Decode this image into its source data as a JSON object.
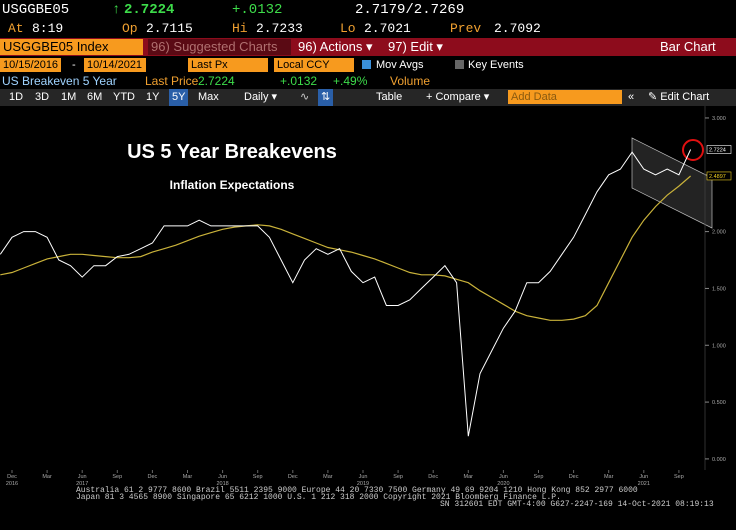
{
  "header": {
    "ticker": "USGGBE05",
    "last": "2.7224",
    "change": "+.0132",
    "bid_ask": "2.7179/2.7269"
  },
  "quote": {
    "at_label": "At",
    "at": "8:19",
    "open_label": "Op",
    "open": "2.7115",
    "high_label": "Hi",
    "high": "2.7233",
    "low_label": "Lo",
    "low": "2.7021",
    "prev_label": "Prev",
    "prev": "2.7092"
  },
  "command": {
    "security": "USGGBE05 Index",
    "suggested": "96) Suggested Charts",
    "actions": "96) Actions",
    "edit": "97) Edit",
    "function": "Bar Chart"
  },
  "settings": {
    "start": "10/15/2016",
    "dash": "-",
    "end": "10/14/2021",
    "field": "Last Px",
    "currency": "Local CCY",
    "mov_avgs": "Mov Avgs",
    "key_events": "Key Events"
  },
  "legend": {
    "name": "US Breakeven 5 Year",
    "last_label": "Last Price",
    "last": "2.7224",
    "change": "+.0132",
    "pct": "+.49%",
    "volume": "Volume"
  },
  "toolbar": {
    "periods": [
      "1D",
      "3D",
      "1M",
      "6M",
      "YTD",
      "1Y",
      "5Y",
      "Max"
    ],
    "active": "5Y",
    "frequency": "Daily",
    "table": "Table",
    "compare": "+ Compare",
    "add_data": "Add Data",
    "edit_chart": "Edit Chart"
  },
  "chart_data": {
    "type": "line",
    "title": "US 5 Year Breakevens",
    "subtitle": "Inflation Expectations",
    "categories": [
      null,
      "Dec",
      null,
      null,
      "Mar",
      null,
      null,
      "Jun",
      null,
      null,
      "Sep",
      null,
      null,
      "Dec",
      null,
      null,
      "Mar",
      null,
      null,
      "Jun",
      null,
      null,
      "Sep",
      null,
      null,
      "Dec",
      null,
      null,
      "Mar",
      null,
      null,
      "Jun",
      null,
      null,
      "Sep",
      null,
      null,
      "Dec",
      null,
      null,
      "Mar",
      null,
      null,
      "Jun",
      null,
      null,
      "Sep",
      null,
      null,
      "Dec",
      null,
      null,
      "Mar",
      null,
      null,
      "Jun",
      null,
      null,
      "Sep",
      null
    ],
    "year_labels": [
      null,
      "2016",
      null,
      null,
      null,
      null,
      null,
      "2017",
      null,
      null,
      null,
      null,
      null,
      null,
      null,
      null,
      null,
      null,
      null,
      "2018",
      null,
      null,
      null,
      null,
      null,
      null,
      null,
      null,
      null,
      null,
      null,
      "2019",
      null,
      null,
      null,
      null,
      null,
      null,
      null,
      null,
      null,
      null,
      null,
      "2020",
      null,
      null,
      null,
      null,
      null,
      null,
      null,
      null,
      null,
      null,
      null,
      "2021",
      null,
      null,
      null,
      null
    ],
    "series": [
      {
        "name": "Last Price",
        "color": "#ffffff",
        "last_value_label": "2.7224",
        "label_color": "#ffffff",
        "values": [
          1.8,
          1.95,
          2.0,
          2.0,
          1.95,
          1.75,
          1.7,
          1.6,
          1.7,
          1.7,
          1.78,
          1.8,
          1.85,
          1.9,
          2.05,
          2.05,
          2.05,
          2.1,
          2.05,
          2.05,
          2.05,
          2.05,
          2.05,
          1.95,
          1.75,
          1.55,
          1.75,
          1.85,
          1.8,
          1.85,
          1.65,
          1.55,
          1.6,
          1.35,
          1.35,
          1.4,
          1.5,
          1.6,
          1.7,
          1.55,
          0.2,
          0.75,
          0.95,
          1.15,
          1.3,
          1.55,
          1.55,
          1.65,
          1.8,
          1.95,
          2.15,
          2.35,
          2.5,
          2.55,
          2.7,
          2.55,
          2.5,
          2.55,
          2.5,
          2.7224
        ]
      },
      {
        "name": "Mov Avgs",
        "color": "#c9b23a",
        "last_value_label": "2.4897",
        "label_color": "#f0d020",
        "values": [
          1.62,
          1.64,
          1.68,
          1.72,
          1.76,
          1.78,
          1.8,
          1.8,
          1.79,
          1.78,
          1.77,
          1.77,
          1.78,
          1.82,
          1.85,
          1.88,
          1.92,
          1.96,
          1.99,
          2.02,
          2.04,
          2.05,
          2.06,
          2.05,
          2.02,
          1.98,
          1.94,
          1.9,
          1.86,
          1.84,
          1.82,
          1.79,
          1.76,
          1.72,
          1.68,
          1.64,
          1.62,
          1.62,
          1.61,
          1.58,
          1.55,
          1.48,
          1.42,
          1.36,
          1.3,
          1.26,
          1.24,
          1.22,
          1.22,
          1.23,
          1.26,
          1.35,
          1.55,
          1.75,
          1.95,
          2.1,
          2.22,
          2.32,
          2.4,
          2.4897
        ]
      }
    ],
    "ylim": [
      -0.08,
      3.07
    ],
    "yticks": [
      {
        "value": 0,
        "label": "0.000"
      },
      {
        "value": 0.5,
        "label": "0.500"
      },
      {
        "value": 1,
        "label": "1.000"
      },
      {
        "value": 1.5,
        "label": "1.500"
      },
      {
        "value": 2,
        "label": "2.000"
      },
      {
        "value": 2.5,
        "label": "2.500"
      },
      {
        "value": 3,
        "label": "3.000"
      }
    ],
    "grid": false
  },
  "footer": [
    "Australia 61 2 9777 8600 Brazil 5511 2395 9000 Europe 44 20 7330 7500 Germany 49 69 9204 1210 Hong Kong 852 2977 6000",
    "Japan 81 3 4565 8900 Singapore 65 6212 1000 U.S. 1 212 318 2000 Copyright 2021 Bloomberg Finance L.P.",
    "SN 312601 EDT GMT-4:00 G627-2247-169 14-Oct-2021 08:19:13"
  ]
}
